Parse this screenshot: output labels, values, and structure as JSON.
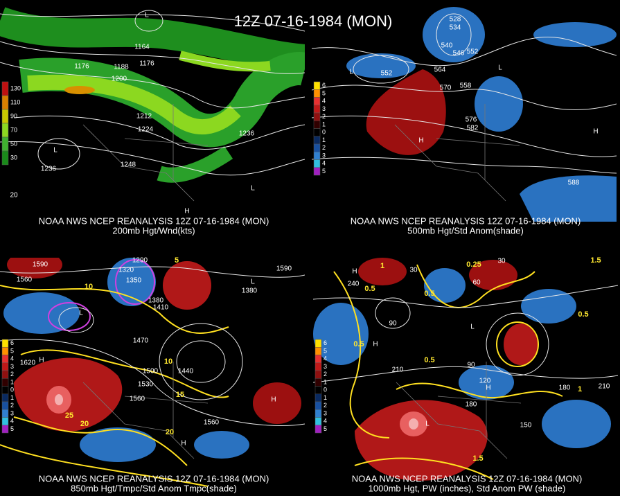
{
  "title": "12Z 07-16-1984 (MON)",
  "panels": [
    {
      "caption": "NOAA NWS NCEP REANALYSIS 12Z 07-16-1984 (MON)",
      "subcaption": "200mb Hgt/Wnd(kts)",
      "legend": [
        "130",
        "110",
        "90",
        "70",
        "50",
        "30"
      ],
      "legend_colors": [
        "#c01010",
        "#d88000",
        "#c8c800",
        "#8cd820",
        "#40b030",
        "#1a8a1a"
      ],
      "labels": [
        "1164",
        "1176",
        "1188",
        "1176",
        "1200",
        "1212",
        "1224",
        "1236",
        "1236",
        "1248",
        "L",
        "L",
        "L",
        "H",
        "20"
      ]
    },
    {
      "caption": "NOAA NWS NCEP REANALYSIS 12Z 07-16-1984 (MON)",
      "subcaption": "500mb Hgt/Std Anom(shade)",
      "legend": [
        "6",
        "5",
        "4",
        "3",
        "2",
        "1",
        "0",
        "1",
        "2",
        "3",
        "4",
        "5"
      ],
      "legend_colors": [
        "#ffe000",
        "#ff9000",
        "#e83030",
        "#c01818",
        "#901010",
        "#300000",
        "#000000",
        "#0a2a60",
        "#1850a0",
        "#3080d0",
        "#30c0e0",
        "#a020c0"
      ],
      "labels": [
        "528",
        "534",
        "540",
        "546",
        "552",
        "552",
        "564",
        "570",
        "558",
        "576",
        "582",
        "588",
        "H",
        "H",
        "L",
        "L"
      ]
    },
    {
      "caption": "NOAA NWS NCEP REANALYSIS 12Z 07-16-1984 (MON)",
      "subcaption": "850mb Hgt/Tmpc/Std Anom Tmpc(shade)",
      "legend": [
        "6",
        "5",
        "4",
        "3",
        "2",
        "1",
        "0",
        "1",
        "2",
        "3",
        "4",
        "5"
      ],
      "legend_colors": [
        "#ffe000",
        "#ff9000",
        "#e83030",
        "#c01818",
        "#901010",
        "#300000",
        "#000000",
        "#0a2a60",
        "#1850a0",
        "#3080d0",
        "#30c0e0",
        "#a020c0"
      ],
      "labels": [
        "1590",
        "1560",
        "1320",
        "1350",
        "1290",
        "1380",
        "1410",
        "1470",
        "1500",
        "1530",
        "1560",
        "1620",
        "1440",
        "1560",
        "1590",
        "1380",
        "H",
        "H",
        "H",
        "L",
        "L"
      ],
      "temp_labels": [
        "10",
        "10",
        "15",
        "20",
        "20",
        "25",
        "5"
      ]
    },
    {
      "caption": "NOAA NWS NCEP REANALYSIS 12Z 07-16-1984 (MON)",
      "subcaption": "1000mb Hgt, PW (inches), Std Anom PW (shade)",
      "legend": [
        "6",
        "5",
        "4",
        "3",
        "2",
        "1",
        "0",
        "1",
        "2",
        "3",
        "4",
        "5"
      ],
      "legend_colors": [
        "#ffe000",
        "#ff9000",
        "#e83030",
        "#c01818",
        "#901010",
        "#300000",
        "#000000",
        "#0a2a60",
        "#1850a0",
        "#3080d0",
        "#30c0e0",
        "#a020c0"
      ],
      "labels": [
        "30",
        "30",
        "60",
        "90",
        "90",
        "120",
        "150",
        "180",
        "180",
        "210",
        "210",
        "240",
        "H",
        "H",
        "L",
        "L",
        "H"
      ],
      "temp_labels": [
        "0.5",
        "0.5",
        "0.5",
        "0.5",
        "1",
        "1",
        "1.5",
        "1.5",
        "0.25",
        "0.5"
      ]
    }
  ]
}
